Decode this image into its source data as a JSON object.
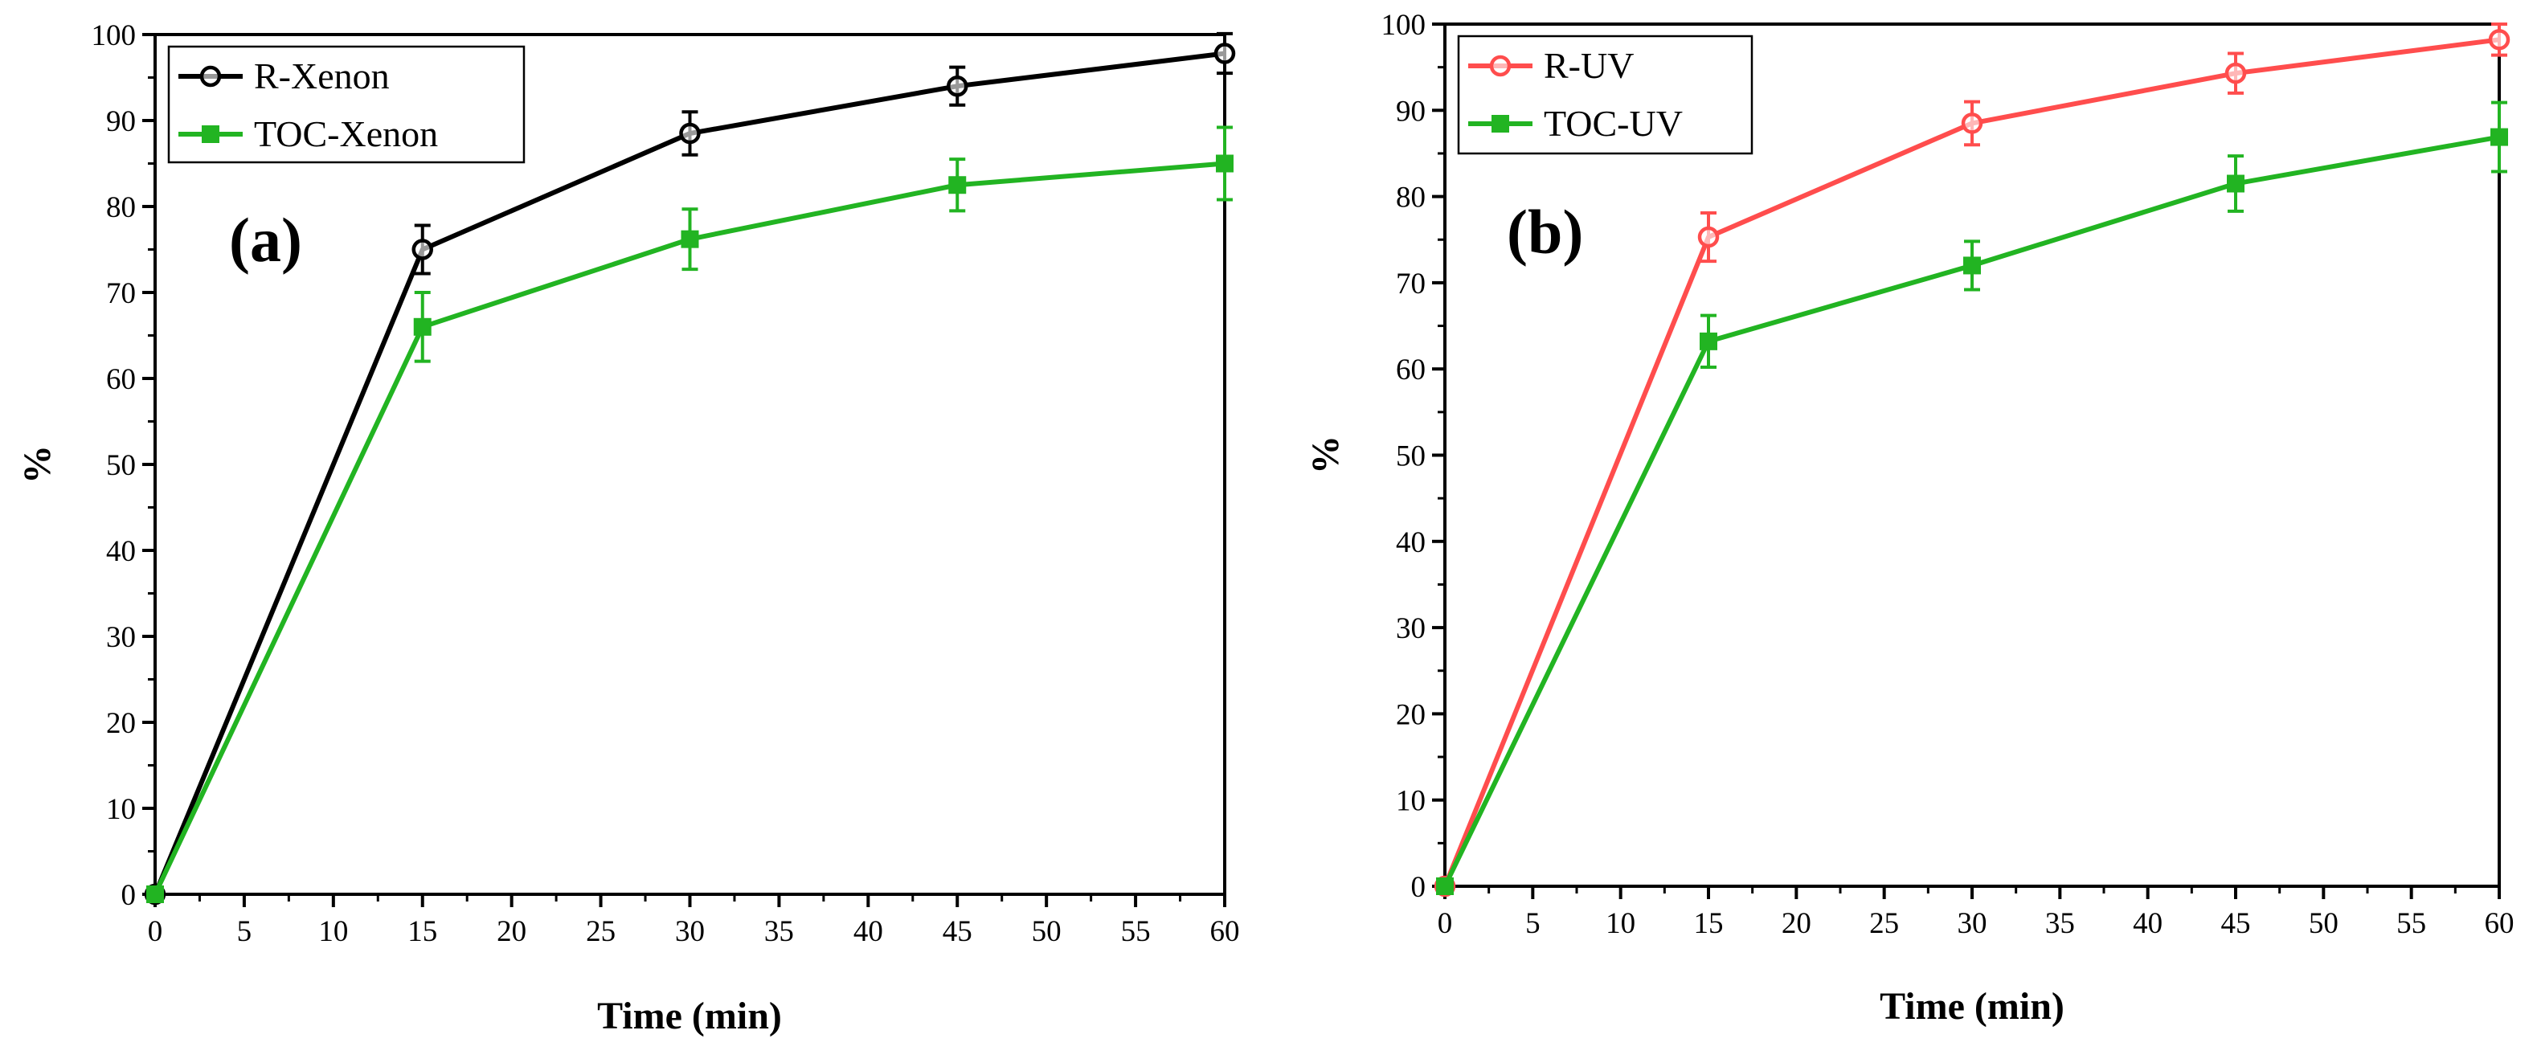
{
  "chart_data": [
    {
      "type": "line",
      "panel_label": "(a)",
      "xlabel": "Time (min)",
      "ylabel": "%",
      "xlim": [
        0,
        60
      ],
      "ylim": [
        0,
        100
      ],
      "x_ticks": [
        0,
        5,
        10,
        15,
        20,
        25,
        30,
        35,
        40,
        45,
        50,
        55,
        60
      ],
      "y_ticks": [
        0,
        10,
        20,
        30,
        40,
        50,
        60,
        70,
        80,
        90,
        100
      ],
      "legend_position": "top-left",
      "series": [
        {
          "name": "R-Xenon",
          "color": "#000000",
          "marker": "circle",
          "x": [
            0,
            15,
            30,
            45,
            60
          ],
          "values": [
            0,
            75,
            88.5,
            94,
            97.8
          ],
          "errors": [
            0,
            2.8,
            2.5,
            2.2,
            2.3
          ]
        },
        {
          "name": "TOC-Xenon",
          "color": "#22b422",
          "marker": "square",
          "x": [
            0,
            15,
            30,
            45,
            60
          ],
          "values": [
            0,
            66,
            76.2,
            82.5,
            85
          ],
          "errors": [
            0,
            4,
            3.5,
            3,
            4.2
          ]
        }
      ]
    },
    {
      "type": "line",
      "panel_label": "(b)",
      "xlabel": "Time (min)",
      "ylabel": "%",
      "xlim": [
        0,
        60
      ],
      "ylim": [
        0,
        100
      ],
      "x_ticks": [
        0,
        5,
        10,
        15,
        20,
        25,
        30,
        35,
        40,
        45,
        50,
        55,
        60
      ],
      "y_ticks": [
        0,
        10,
        20,
        30,
        40,
        50,
        60,
        70,
        80,
        90,
        100
      ],
      "legend_position": "top-left",
      "series": [
        {
          "name": "R-UV",
          "color": "#ff4d4d",
          "marker": "circle",
          "x": [
            0,
            15,
            30,
            45,
            60
          ],
          "values": [
            0,
            75.3,
            88.5,
            94.3,
            98.2
          ],
          "errors": [
            0,
            2.8,
            2.5,
            2.3,
            1.8
          ]
        },
        {
          "name": "TOC-UV",
          "color": "#22b422",
          "marker": "square",
          "x": [
            0,
            15,
            30,
            45,
            60
          ],
          "values": [
            0,
            63.2,
            72,
            81.5,
            86.9
          ],
          "errors": [
            0,
            3,
            2.8,
            3.2,
            4
          ]
        }
      ]
    }
  ]
}
